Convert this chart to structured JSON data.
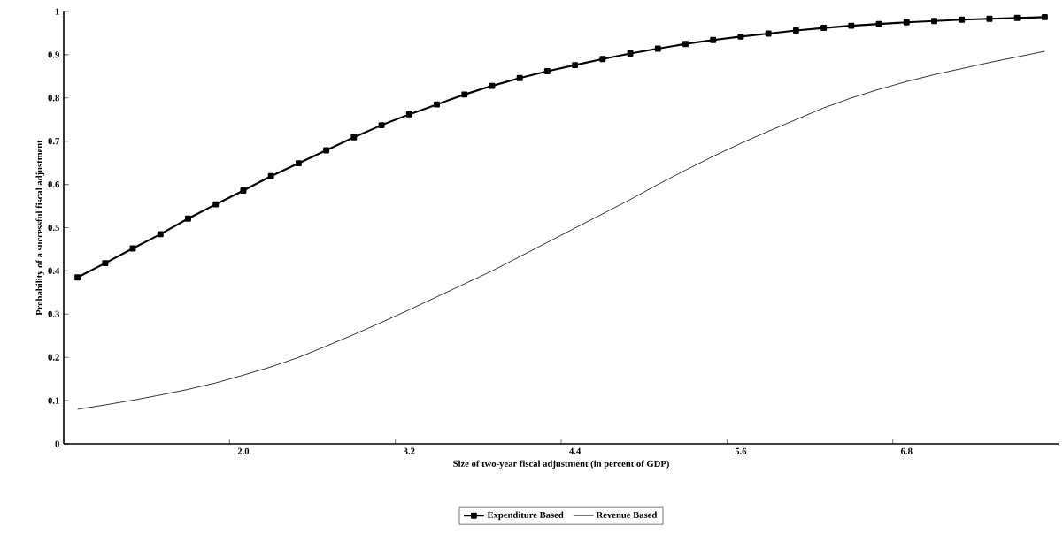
{
  "chart_data": {
    "type": "line",
    "xlabel": "Size of two-year fiscal adjustment (in percent of GDP)",
    "ylabel": "Probability of a successful fiscal adjustment",
    "categories": [
      null,
      null,
      null,
      null,
      null,
      null,
      "2.0",
      null,
      null,
      null,
      null,
      null,
      "3.2",
      null,
      null,
      null,
      null,
      null,
      "4.4",
      null,
      null,
      null,
      null,
      null,
      "5.6",
      null,
      null,
      null,
      null,
      null,
      "6.8",
      null,
      null,
      null,
      null,
      null
    ],
    "series": [
      {
        "name": "Expenditure Based",
        "color": "#000000",
        "marker": "square",
        "values": [
          0.385,
          0.418,
          0.452,
          0.485,
          0.521,
          0.554,
          0.586,
          0.619,
          0.649,
          0.679,
          0.709,
          0.737,
          0.762,
          0.785,
          0.808,
          0.828,
          0.846,
          0.862,
          0.876,
          0.89,
          0.903,
          0.914,
          0.925,
          0.934,
          0.942,
          0.949,
          0.956,
          0.962,
          0.967,
          0.971,
          0.975,
          0.978,
          0.981,
          0.983,
          0.985,
          0.987
        ]
      },
      {
        "name": "Revenue Based",
        "color": "#000000",
        "marker": "none",
        "values": [
          0.08,
          0.09,
          0.101,
          0.113,
          0.126,
          0.141,
          0.159,
          0.178,
          0.2,
          0.226,
          0.253,
          0.281,
          0.31,
          0.34,
          0.37,
          0.4,
          0.433,
          0.466,
          0.499,
          0.532,
          0.565,
          0.6,
          0.633,
          0.665,
          0.695,
          0.723,
          0.75,
          0.777,
          0.8,
          0.82,
          0.838,
          0.854,
          0.868,
          0.882,
          0.895,
          0.908
        ]
      }
    ],
    "ylim": [
      0,
      1
    ],
    "yticks": [
      0,
      0.1,
      0.2,
      0.3,
      0.4,
      0.5,
      0.6,
      0.7,
      0.8,
      0.9,
      1
    ],
    "legend": "bottom",
    "grid": false
  }
}
